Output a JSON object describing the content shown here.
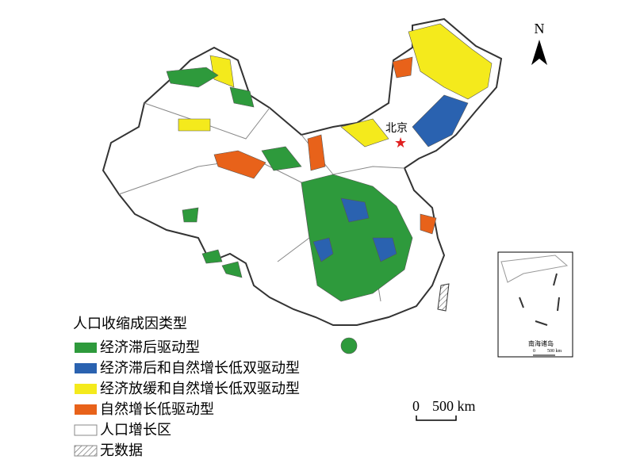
{
  "legend": {
    "title": "人口收缩成因类型",
    "items": [
      {
        "label": "经济滞后驱动型",
        "color": "#2e9a3c"
      },
      {
        "label": "经济滞后和自然增长低双驱动型",
        "color": "#2a62b0"
      },
      {
        "label": "经济放缓和自然增长低双驱动型",
        "color": "#f4ea1c"
      },
      {
        "label": "自然增长低驱动型",
        "color": "#e8621a"
      },
      {
        "label": "人口增长区",
        "color": "#ffffff"
      },
      {
        "label": "无数据"
      }
    ]
  },
  "north": "N",
  "scale_bar": {
    "zero": "0",
    "distance": "500 km"
  },
  "capital": "北京",
  "inset": {
    "title": "南海诸岛",
    "scale_zero": "0",
    "scale_distance": "500 km"
  }
}
